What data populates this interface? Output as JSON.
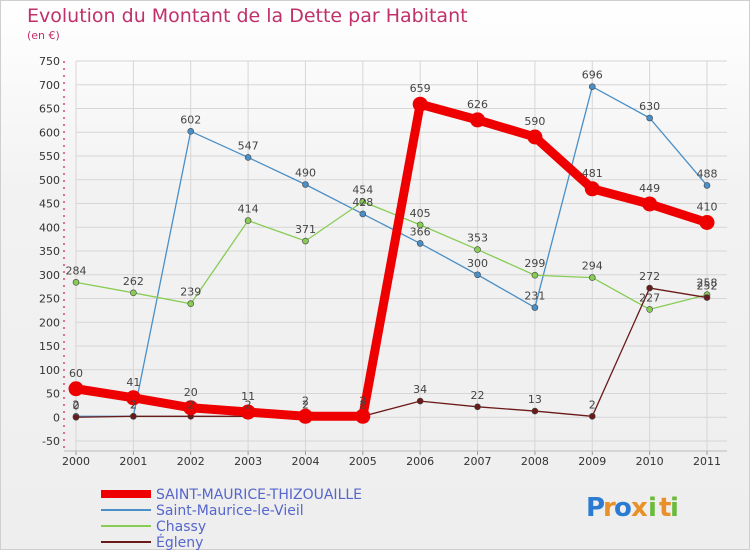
{
  "chart_data": {
    "type": "line",
    "title": "Evolution du Montant de la Dette par Habitant",
    "subtitle": "(en €)",
    "x": [
      "2000",
      "2001",
      "2002",
      "2003",
      "2004",
      "2005",
      "2006",
      "2007",
      "2008",
      "2009",
      "2010",
      "2011"
    ],
    "ylim": [
      -50,
      750
    ],
    "yticks": [
      -50,
      0,
      50,
      100,
      150,
      200,
      250,
      300,
      350,
      400,
      450,
      500,
      550,
      600,
      650,
      700,
      750
    ],
    "grid": true,
    "legend_position": "bottom-left",
    "series": [
      {
        "name": "SAINT-MAURICE-THIZOUAILLE",
        "color": "#ee0000",
        "values": [
          60,
          41,
          20,
          11,
          2,
          2,
          659,
          626,
          590,
          481,
          449,
          410
        ]
      },
      {
        "name": "Saint-Maurice-le-Vieil",
        "color": "#4a8fc7",
        "values": [
          2,
          2,
          602,
          547,
          490,
          428,
          366,
          300,
          231,
          696,
          630,
          488
        ]
      },
      {
        "name": "Chassy",
        "color": "#88cc55",
        "values": [
          284,
          262,
          239,
          414,
          371,
          454,
          405,
          353,
          299,
          294,
          227,
          258
        ]
      },
      {
        "name": "Égleny",
        "color": "#6b1a1a",
        "values": [
          0,
          2,
          2,
          2,
          2,
          2,
          34,
          22,
          13,
          2,
          272,
          252
        ]
      }
    ]
  },
  "brand": {
    "text": "Proxiti",
    "letters": [
      "P",
      "r",
      "o",
      "x",
      "i",
      "t",
      "i"
    ],
    "colors": [
      "#2a7bd1",
      "#e8912a",
      "#2a7bd1",
      "#e8912a",
      "#6abb3c",
      "#e8912a",
      "#6abb3c"
    ]
  }
}
